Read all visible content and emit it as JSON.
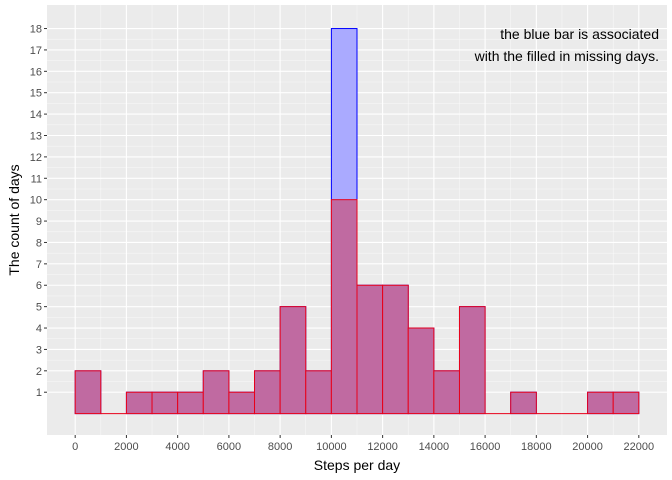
{
  "chart_data": {
    "type": "bar",
    "xlabel": "Steps per day",
    "ylabel": "The count of days",
    "xlim": [
      -1100,
      23100
    ],
    "ylim": [
      -1,
      19.1
    ],
    "x_ticks": [
      0,
      2000,
      4000,
      6000,
      8000,
      10000,
      12000,
      14000,
      16000,
      18000,
      20000,
      22000
    ],
    "x_tick_labels": [
      "0",
      "2000",
      "4000",
      "6000",
      "8000",
      "10000",
      "12000",
      "14000",
      "16000",
      "18000",
      "20000",
      "22000"
    ],
    "y_ticks": [
      1,
      2,
      3,
      4,
      5,
      6,
      7,
      8,
      9,
      10,
      11,
      12,
      13,
      14,
      15,
      16,
      17,
      18
    ],
    "y_tick_labels": [
      "1",
      "2",
      "3",
      "4",
      "5",
      "6",
      "7",
      "8",
      "9",
      "10",
      "11",
      "12",
      "13",
      "14",
      "15",
      "16",
      "17",
      "18"
    ],
    "grid": true,
    "bin_width": 1000,
    "bin_starts": [
      0,
      1000,
      2000,
      3000,
      4000,
      5000,
      6000,
      7000,
      8000,
      9000,
      10000,
      11000,
      12000,
      13000,
      14000,
      15000,
      16000,
      17000,
      18000,
      19000,
      20000,
      21000
    ],
    "series": [
      {
        "values": [
          2,
          0,
          1,
          1,
          1,
          2,
          1,
          2,
          5,
          2,
          18,
          6,
          6,
          4,
          2,
          5,
          0,
          1,
          0,
          0,
          1,
          1
        ],
        "fill": "#aaaaff",
        "stroke": "#0000ff"
      },
      {
        "values": [
          2,
          0,
          1,
          1,
          1,
          2,
          1,
          2,
          5,
          2,
          10,
          6,
          6,
          4,
          2,
          5,
          0,
          1,
          0,
          0,
          1,
          1
        ],
        "fill": "#c06aa1",
        "stroke": "#e8001a"
      }
    ],
    "annotation": [
      "the blue bar is associated",
      "with the filled in missing days."
    ],
    "annotation_placement": "top-right",
    "panel_background": "#ebebeb",
    "grid_color": "#ffffff"
  }
}
